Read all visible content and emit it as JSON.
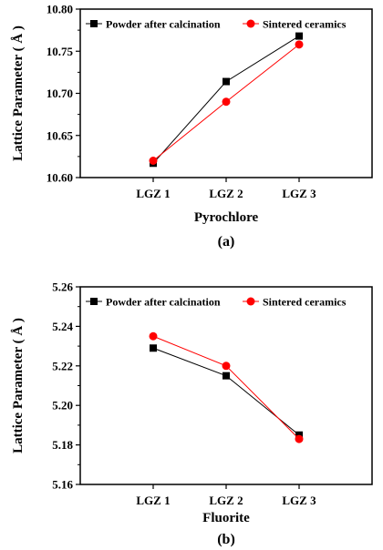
{
  "chart_data": [
    {
      "type": "line",
      "panel_label": "(a)",
      "xlabel": "Pyrochlore",
      "ylabel": "Lattice Parameter ( Å )",
      "categories": [
        "LGZ 1",
        "LGZ 2",
        "LGZ 3"
      ],
      "ylim": [
        10.6,
        10.8
      ],
      "yticks": [
        "10.60",
        "10.65",
        "10.70",
        "10.75",
        "10.80"
      ],
      "legend_position": "top",
      "grid": false,
      "series": [
        {
          "name": "Powder after calcination",
          "values": [
            10.617,
            10.714,
            10.768
          ],
          "color": "#000000",
          "marker": "square"
        },
        {
          "name": "Sintered ceramics",
          "values": [
            10.62,
            10.69,
            10.758
          ],
          "color": "#ff0000",
          "marker": "circle"
        }
      ]
    },
    {
      "type": "line",
      "panel_label": "(b)",
      "xlabel": "Fluorite",
      "ylabel": "Lattice Parameter ( Å )",
      "categories": [
        "LGZ 1",
        "LGZ 2",
        "LGZ 3"
      ],
      "ylim": [
        5.16,
        5.26
      ],
      "yticks": [
        "5.16",
        "5.18",
        "5.20",
        "5.22",
        "5.24",
        "5.26"
      ],
      "legend_position": "top",
      "grid": false,
      "series": [
        {
          "name": "Powder after calcination",
          "values": [
            5.229,
            5.215,
            5.185
          ],
          "color": "#000000",
          "marker": "square"
        },
        {
          "name": "Sintered ceramics",
          "values": [
            5.235,
            5.22,
            5.183
          ],
          "color": "#ff0000",
          "marker": "circle"
        }
      ]
    }
  ]
}
